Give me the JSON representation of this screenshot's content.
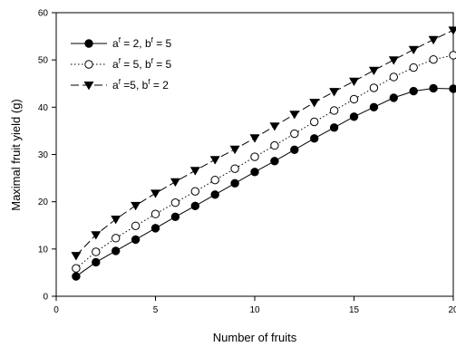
{
  "chart_data": {
    "type": "line",
    "title": "",
    "xlabel": "Number of fruits",
    "ylabel": "Maximal fruit yield (g)",
    "xlim": [
      0,
      20
    ],
    "ylim": [
      0,
      60
    ],
    "xticks": [
      0,
      5,
      10,
      15,
      20
    ],
    "yticks": [
      0,
      10,
      20,
      30,
      40,
      50,
      60
    ],
    "grid": false,
    "legend_position": "top-left",
    "x": [
      1,
      2,
      3,
      4,
      5,
      6,
      7,
      8,
      9,
      10,
      11,
      12,
      13,
      14,
      15,
      16,
      17,
      18,
      19,
      20
    ],
    "series": [
      {
        "legend": {
          "a": "a",
          "a_sup": "f",
          "a_val": " = 2, ",
          "b": "b",
          "b_sup": "f",
          "b_val": " = 5"
        },
        "marker": "filled-circle",
        "line_style": "solid",
        "values": [
          4.2,
          7.2,
          9.6,
          12.0,
          14.4,
          16.8,
          19.1,
          21.5,
          23.9,
          26.3,
          28.6,
          31.0,
          33.4,
          35.7,
          38.0,
          40.0,
          42.0,
          43.4,
          44.0,
          43.9
        ]
      },
      {
        "legend": {
          "a": "a",
          "a_sup": "f",
          "a_val": " = 5, ",
          "b": "b",
          "b_sup": "f",
          "b_val": " = 5"
        },
        "marker": "open-circle",
        "line_style": "dotted",
        "values": [
          5.9,
          9.4,
          12.3,
          14.9,
          17.4,
          19.8,
          22.2,
          24.6,
          27.0,
          29.5,
          31.9,
          34.4,
          36.9,
          39.3,
          41.7,
          44.1,
          46.4,
          48.4,
          50.1,
          51.0
        ]
      },
      {
        "legend": {
          "a": "a",
          "a_sup": "f",
          "a_val": " =5, ",
          "b": "b",
          "b_sup": "f",
          "b_val": " = 2"
        },
        "marker": "filled-triangle-down",
        "line_style": "dashed",
        "values": [
          8.6,
          13.0,
          16.3,
          19.2,
          21.8,
          24.2,
          26.6,
          28.9,
          31.1,
          33.5,
          36.0,
          38.5,
          41.0,
          43.3,
          45.5,
          47.8,
          50.0,
          52.2,
          54.3,
          56.3
        ]
      }
    ]
  }
}
